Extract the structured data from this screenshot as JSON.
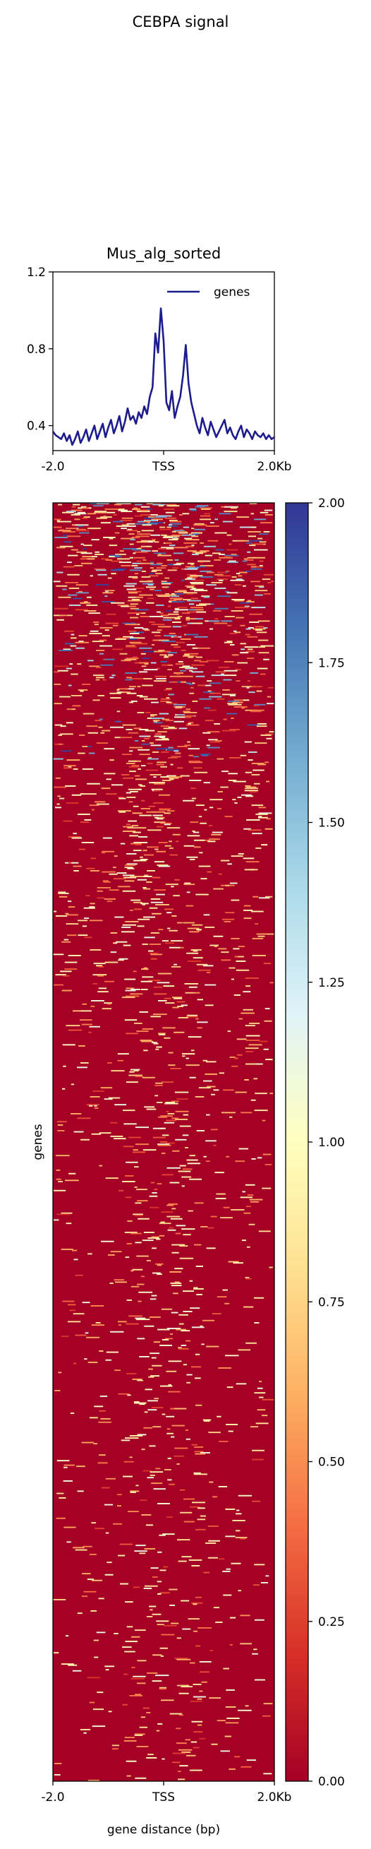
{
  "figure": {
    "suptitle": "CEBPA signal"
  },
  "chart_data": [
    {
      "type": "line",
      "title": "Mus_alg_sorted",
      "xlabel": "",
      "ylabel": "",
      "x_ticks": [
        "-2.0",
        "TSS",
        "2.0Kb"
      ],
      "y_ticks": [
        "0.4",
        "0.8",
        "1.2"
      ],
      "xlim": [
        -2000,
        2000
      ],
      "ylim": [
        0.27,
        1.2
      ],
      "legend": {
        "position": "top-right",
        "entries": [
          "genes"
        ]
      },
      "series": [
        {
          "name": "genes",
          "color": "#1c1c8c",
          "x": [
            -2000,
            -1950,
            -1900,
            -1850,
            -1800,
            -1750,
            -1700,
            -1650,
            -1600,
            -1550,
            -1500,
            -1450,
            -1400,
            -1350,
            -1300,
            -1250,
            -1200,
            -1150,
            -1100,
            -1050,
            -1000,
            -950,
            -900,
            -850,
            -800,
            -750,
            -700,
            -650,
            -600,
            -550,
            -500,
            -450,
            -400,
            -350,
            -300,
            -250,
            -200,
            -150,
            -100,
            -50,
            0,
            50,
            100,
            150,
            200,
            250,
            300,
            350,
            400,
            450,
            500,
            550,
            600,
            650,
            700,
            750,
            800,
            850,
            900,
            950,
            1000,
            1050,
            1100,
            1150,
            1200,
            1250,
            1300,
            1350,
            1400,
            1450,
            1500,
            1550,
            1600,
            1650,
            1700,
            1750,
            1800,
            1850,
            1900,
            1950,
            2000
          ],
          "values": [
            0.37,
            0.35,
            0.34,
            0.33,
            0.36,
            0.32,
            0.35,
            0.3,
            0.33,
            0.37,
            0.31,
            0.34,
            0.38,
            0.32,
            0.36,
            0.4,
            0.33,
            0.37,
            0.41,
            0.34,
            0.39,
            0.43,
            0.36,
            0.4,
            0.45,
            0.37,
            0.42,
            0.49,
            0.43,
            0.45,
            0.41,
            0.47,
            0.44,
            0.5,
            0.46,
            0.55,
            0.6,
            0.88,
            0.78,
            1.01,
            0.84,
            0.52,
            0.48,
            0.58,
            0.44,
            0.5,
            0.55,
            0.66,
            0.82,
            0.62,
            0.52,
            0.46,
            0.4,
            0.36,
            0.44,
            0.39,
            0.35,
            0.42,
            0.38,
            0.34,
            0.37,
            0.4,
            0.43,
            0.36,
            0.39,
            0.35,
            0.33,
            0.37,
            0.4,
            0.34,
            0.38,
            0.36,
            0.33,
            0.37,
            0.35,
            0.34,
            0.36,
            0.33,
            0.35,
            0.33,
            0.34
          ]
        }
      ]
    },
    {
      "type": "heatmap",
      "title": "",
      "xlabel": "gene distance (bp)",
      "ylabel": "genes",
      "x_ticks": [
        "-2.0",
        "TSS",
        "2.0Kb"
      ],
      "colorbar": {
        "colormap": "RdYlBu",
        "range": [
          0.0,
          2.0
        ],
        "ticks": [
          "0.00",
          "0.25",
          "0.50",
          "0.75",
          "1.00",
          "1.25",
          "1.50",
          "1.75",
          "2.00"
        ]
      },
      "background_value": 0.0,
      "background_color": "#a50026",
      "note_rows": "rows are genes sorted by signal; sparse short high-signal segments, denser near the top"
    }
  ]
}
